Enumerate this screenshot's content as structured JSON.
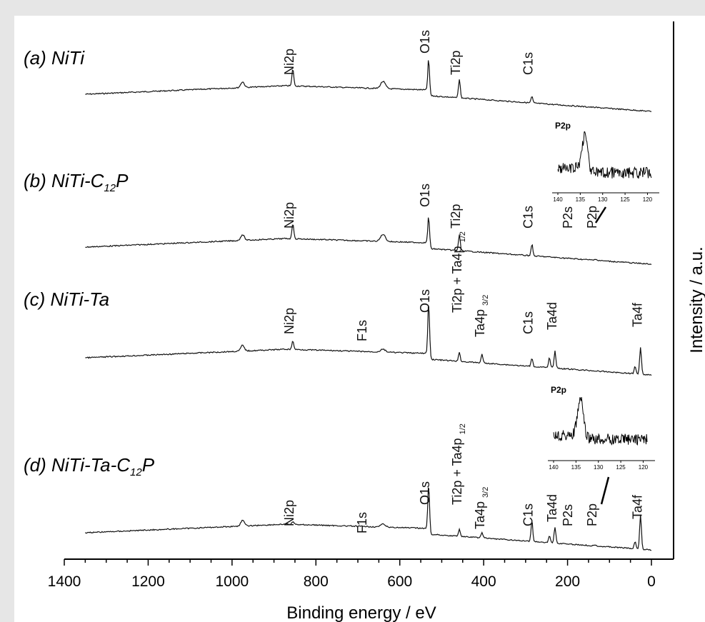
{
  "chart_data": {
    "type": "line",
    "xlabel": "Binding energy / eV",
    "ylabel": "Intensity / a.u.",
    "xlim": [
      1400,
      0
    ],
    "x_ticks": [
      "1400",
      "1200",
      "1000",
      "800",
      "600",
      "400",
      "200",
      "0"
    ],
    "series": [
      {
        "panel": "(a) NiTi",
        "peaks": [
          {
            "label": "Ni2p",
            "x": 855
          },
          {
            "label": "O1s",
            "x": 531
          },
          {
            "label": "Ti2p",
            "x": 458
          },
          {
            "label": "C1s",
            "x": 285
          }
        ]
      },
      {
        "panel": "(b) NiTi-C12P",
        "label_main": "(b) NiTi-C",
        "label_sub": "12",
        "label_end": "P",
        "peaks": [
          {
            "label": "Ni2p",
            "x": 855
          },
          {
            "label": "O1s",
            "x": 531
          },
          {
            "label": "Ti2p",
            "x": 458
          },
          {
            "label": "C1s",
            "x": 285
          },
          {
            "label": "P2s",
            "x": 191
          },
          {
            "label": "P2p",
            "x": 133
          }
        ]
      },
      {
        "panel": "(c) NiTi-Ta",
        "peaks": [
          {
            "label": "Ni2p",
            "x": 855
          },
          {
            "label": "F1s",
            "x": 686
          },
          {
            "label": "O1s",
            "x": 531
          },
          {
            "label": "Ti2p + Ta4p",
            "sub": "1/2",
            "x": 458
          },
          {
            "label": "Ta4p",
            "sub": "3/2",
            "x": 404
          },
          {
            "label": "C1s",
            "x": 285
          },
          {
            "label": "Ta4d",
            "x": 230
          },
          {
            "label": "Ta4f",
            "x": 26
          }
        ]
      },
      {
        "panel": "(d) NiTi-Ta-C12P",
        "label_main": "(d) NiTi-Ta-C",
        "label_sub": "12",
        "label_end": "P",
        "peaks": [
          {
            "label": "Ni2p",
            "x": 855
          },
          {
            "label": "F1s",
            "x": 686
          },
          {
            "label": "O1s",
            "x": 531
          },
          {
            "label": "Ti2p + Ta4p",
            "sub": "1/2",
            "x": 458
          },
          {
            "label": "Ta4p",
            "sub": "3/2",
            "x": 404
          },
          {
            "label": "C1s",
            "x": 285
          },
          {
            "label": "Ta4d",
            "x": 230
          },
          {
            "label": "P2s",
            "x": 191
          },
          {
            "label": "P2p",
            "x": 133
          },
          {
            "label": "Ta4f",
            "x": 26
          }
        ]
      }
    ],
    "insets": [
      {
        "title": "P2p",
        "xlim": [
          140,
          118
        ],
        "x_ticks": [
          "140",
          "135",
          "130",
          "125",
          "120"
        ],
        "peak_x": 134
      },
      {
        "title": "P2p",
        "xlim": [
          140,
          118
        ],
        "x_ticks": [
          "140",
          "135",
          "130",
          "125",
          "120"
        ],
        "peak_x": 134
      }
    ]
  }
}
